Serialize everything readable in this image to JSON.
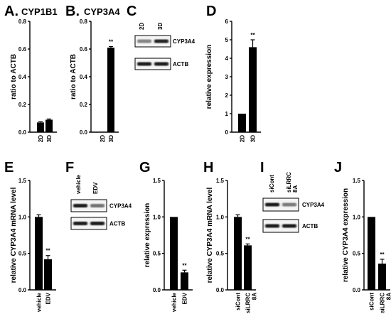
{
  "panels": {
    "A": {
      "letter": "A.",
      "title": "CYP1B1"
    },
    "B": {
      "letter": "B.",
      "title": "CYP3A4"
    },
    "C": {
      "letter": "C"
    },
    "D": {
      "letter": "D"
    },
    "E": {
      "letter": "E"
    },
    "F": {
      "letter": "F"
    },
    "G": {
      "letter": "G"
    },
    "H": {
      "letter": "H"
    },
    "I": {
      "letter": "I"
    },
    "J": {
      "letter": "J"
    }
  },
  "blots": {
    "C": {
      "lanes": [
        "2D",
        "3D"
      ],
      "target_label": "CYP3A4",
      "control_label": "ACTB",
      "target_intensity": [
        0.35,
        0.85
      ],
      "control_intensity": [
        0.9,
        0.9
      ]
    },
    "F": {
      "lanes": [
        "vehicle",
        "EDV"
      ],
      "target_label": "CYP3A4",
      "control_label": "ACTB",
      "target_intensity": [
        0.9,
        0.45
      ],
      "control_intensity": [
        0.9,
        0.9
      ]
    },
    "I": {
      "lanes": [
        "siCont",
        "siLRRC 8A"
      ],
      "target_label": "CYP3A4",
      "control_label": "ACTB",
      "target_intensity": [
        0.9,
        0.4
      ],
      "control_intensity": [
        0.9,
        0.9
      ]
    }
  },
  "chart_data": [
    {
      "id": "A",
      "type": "bar",
      "ylabel": "ratio to ACTB",
      "ylim": [
        0,
        0.8
      ],
      "yticks": [
        "0.0",
        "0.2",
        "0.4",
        "0.6",
        "0.8"
      ],
      "categories": [
        "2D",
        "3D"
      ],
      "values": [
        0.07,
        0.09
      ],
      "errors": [
        0.005,
        0.005
      ],
      "significance": [
        "",
        ""
      ]
    },
    {
      "id": "B",
      "type": "bar",
      "ylabel": "ratio to ACTB",
      "ylim": [
        0,
        0.8
      ],
      "yticks": [
        "0.0",
        "0.2",
        "0.4",
        "0.6",
        "0.8"
      ],
      "categories": [
        "2D",
        "3D"
      ],
      "values": [
        0.0,
        0.61
      ],
      "errors": [
        0.0,
        0.008
      ],
      "significance": [
        "",
        "**"
      ]
    },
    {
      "id": "D",
      "type": "bar",
      "ylabel": "relative expression",
      "ylim": [
        0,
        6
      ],
      "yticks": [
        "0",
        "1",
        "2",
        "3",
        "4",
        "5",
        "6"
      ],
      "categories": [
        "2D",
        "3D"
      ],
      "values": [
        1.0,
        4.6
      ],
      "errors": [
        0.0,
        0.4
      ],
      "significance": [
        "",
        "**"
      ]
    },
    {
      "id": "E",
      "type": "bar",
      "ylabel": "relative CYP3A4 mRNA level",
      "ylim": [
        0,
        1.5
      ],
      "yticks": [
        "0.0",
        "0.5",
        "1.0",
        "1.5"
      ],
      "categories": [
        "vehicle",
        "EDV"
      ],
      "values": [
        1.0,
        0.42
      ],
      "errors": [
        0.03,
        0.05
      ],
      "significance": [
        "",
        "**"
      ]
    },
    {
      "id": "G",
      "type": "bar",
      "ylabel": "relative expression",
      "ylim": [
        0,
        1.5
      ],
      "yticks": [
        "0.0",
        "0.5",
        "1.0",
        "1.5"
      ],
      "categories": [
        "vehicle",
        "EDV"
      ],
      "values": [
        1.0,
        0.24
      ],
      "errors": [
        0.0,
        0.03
      ],
      "significance": [
        "",
        "**"
      ]
    },
    {
      "id": "H",
      "type": "bar",
      "ylabel": "relative CYP3A4 mRNA level",
      "ylim": [
        0,
        1.5
      ],
      "yticks": [
        "0.0",
        "0.5",
        "1.0",
        "1.5"
      ],
      "categories": [
        "siCont",
        "siLRRC 8A"
      ],
      "values": [
        1.0,
        0.61
      ],
      "errors": [
        0.03,
        0.02
      ],
      "significance": [
        "",
        "**"
      ]
    },
    {
      "id": "J",
      "type": "bar",
      "ylabel": "relative CYP3A4 expression",
      "ylim": [
        0,
        1.5
      ],
      "yticks": [
        "0.0",
        "0.5",
        "1.0",
        "1.5"
      ],
      "categories": [
        "siCont",
        "siLRRC 8A"
      ],
      "values": [
        1.0,
        0.36
      ],
      "errors": [
        0.0,
        0.06
      ],
      "significance": [
        "",
        "**"
      ]
    }
  ]
}
